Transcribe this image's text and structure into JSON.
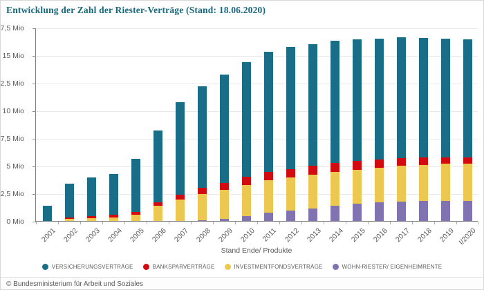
{
  "header": {
    "title": "Entwicklung der Zahl der Riester-Verträge (Stand: 18.06.2020)"
  },
  "footer": {
    "copyright": "© Bundesministerium für Arbeit und Soziales"
  },
  "colors": {
    "title": "#17687e",
    "axis_text": "#595959",
    "grid": "#e9e9e9",
    "versicherung_teal": "#176e86",
    "bankspar_red": "#d20b10",
    "investmentfonds_yellow": "#edc850",
    "wohnriester_purple": "#8172b2"
  },
  "chart_data": {
    "type": "bar",
    "stacked": true,
    "title": "Entwicklung der Zahl der Riester-Verträge (Stand: 18.06.2020)",
    "xlabel": "Stand Ende/ Produkte",
    "ylabel": "",
    "unit": "Mio",
    "ylim": [
      0,
      17.5
    ],
    "ytick_step": 2.5,
    "ytick_labels": [
      "0 Mio",
      "2,5 Mio",
      "5 Mio",
      "7,5 Mio",
      "10 Mio",
      "12,5 Mio",
      "15 Mio",
      "17,5 Mio"
    ],
    "grid": true,
    "legend_position": "bottom",
    "categories": [
      "2001",
      "2002",
      "2003",
      "2004",
      "2005",
      "2006",
      "2007",
      "2008",
      "2009",
      "2010",
      "2011",
      "2012",
      "2013",
      "2014",
      "2015",
      "2016",
      "2017",
      "2018",
      "2019",
      "I/2020"
    ],
    "stack_order_bottom_to_top": [
      "WOHN-RIESTER/ EIGENHEIMRENTE",
      "INVESTMENTFONDSVERTRÄGE",
      "BANKSPARVERTRÄGE",
      "VERSICHERUNGSVERTRÄGE"
    ],
    "series": [
      {
        "name": "VERSICHERUNGSVERTRÄGE",
        "color": "#176e86",
        "values": [
          1.4,
          3.05,
          3.49,
          3.66,
          4.8,
          6.47,
          8.36,
          9.19,
          9.79,
          10.38,
          10.88,
          11.02,
          11.01,
          11.03,
          10.99,
          10.93,
          10.88,
          10.83,
          10.72,
          10.68
        ]
      },
      {
        "name": "BANKSPARVERTRÄGE",
        "color": "#d20b10",
        "values": [
          0,
          0.15,
          0.2,
          0.26,
          0.26,
          0.35,
          0.48,
          0.55,
          0.63,
          0.7,
          0.75,
          0.78,
          0.81,
          0.81,
          0.8,
          0.77,
          0.72,
          0.66,
          0.6,
          0.57
        ]
      },
      {
        "name": "INVESTMENTFONDSVERTRÄGE",
        "color": "#edc850",
        "values": [
          0,
          0.17,
          0.24,
          0.32,
          0.57,
          1.35,
          1.92,
          2.39,
          2.63,
          2.82,
          2.95,
          2.99,
          3.03,
          3.07,
          3.07,
          3.12,
          3.23,
          3.27,
          3.34,
          3.35
        ]
      },
      {
        "name": "WOHN-RIESTER/ EIGENHEIMRENTE",
        "color": "#8172b2",
        "values": [
          0,
          0,
          0,
          0,
          0,
          0,
          0,
          0.08,
          0.2,
          0.46,
          0.72,
          0.95,
          1.15,
          1.38,
          1.56,
          1.69,
          1.77,
          1.81,
          1.83,
          1.83
        ]
      }
    ]
  }
}
